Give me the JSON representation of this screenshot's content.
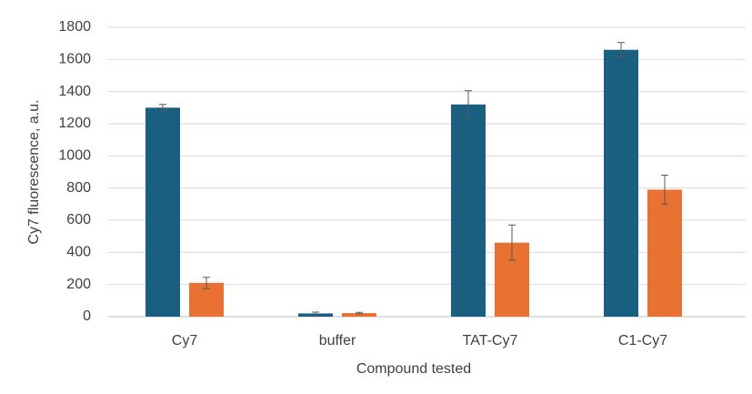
{
  "chart_data": {
    "type": "bar",
    "x_label": "Compound tested",
    "y_label": "Cy7 fluorescence, a.u.",
    "categories": [
      "Cy7",
      "buffer",
      "TAT-Cy7",
      "C1-Cy7"
    ],
    "series": [
      {
        "color": "#1a5e80",
        "values": [
          1300,
          20,
          1320,
          1660
        ],
        "errors": [
          20,
          8,
          85,
          45
        ]
      },
      {
        "color": "#e97132",
        "values": [
          210,
          22,
          460,
          790
        ],
        "errors": [
          35,
          5,
          110,
          90
        ]
      }
    ],
    "ylim": [
      0,
      1800
    ],
    "yticks": [
      0,
      200,
      400,
      600,
      800,
      1000,
      1200,
      1400,
      1600,
      1800
    ],
    "grid": true
  }
}
